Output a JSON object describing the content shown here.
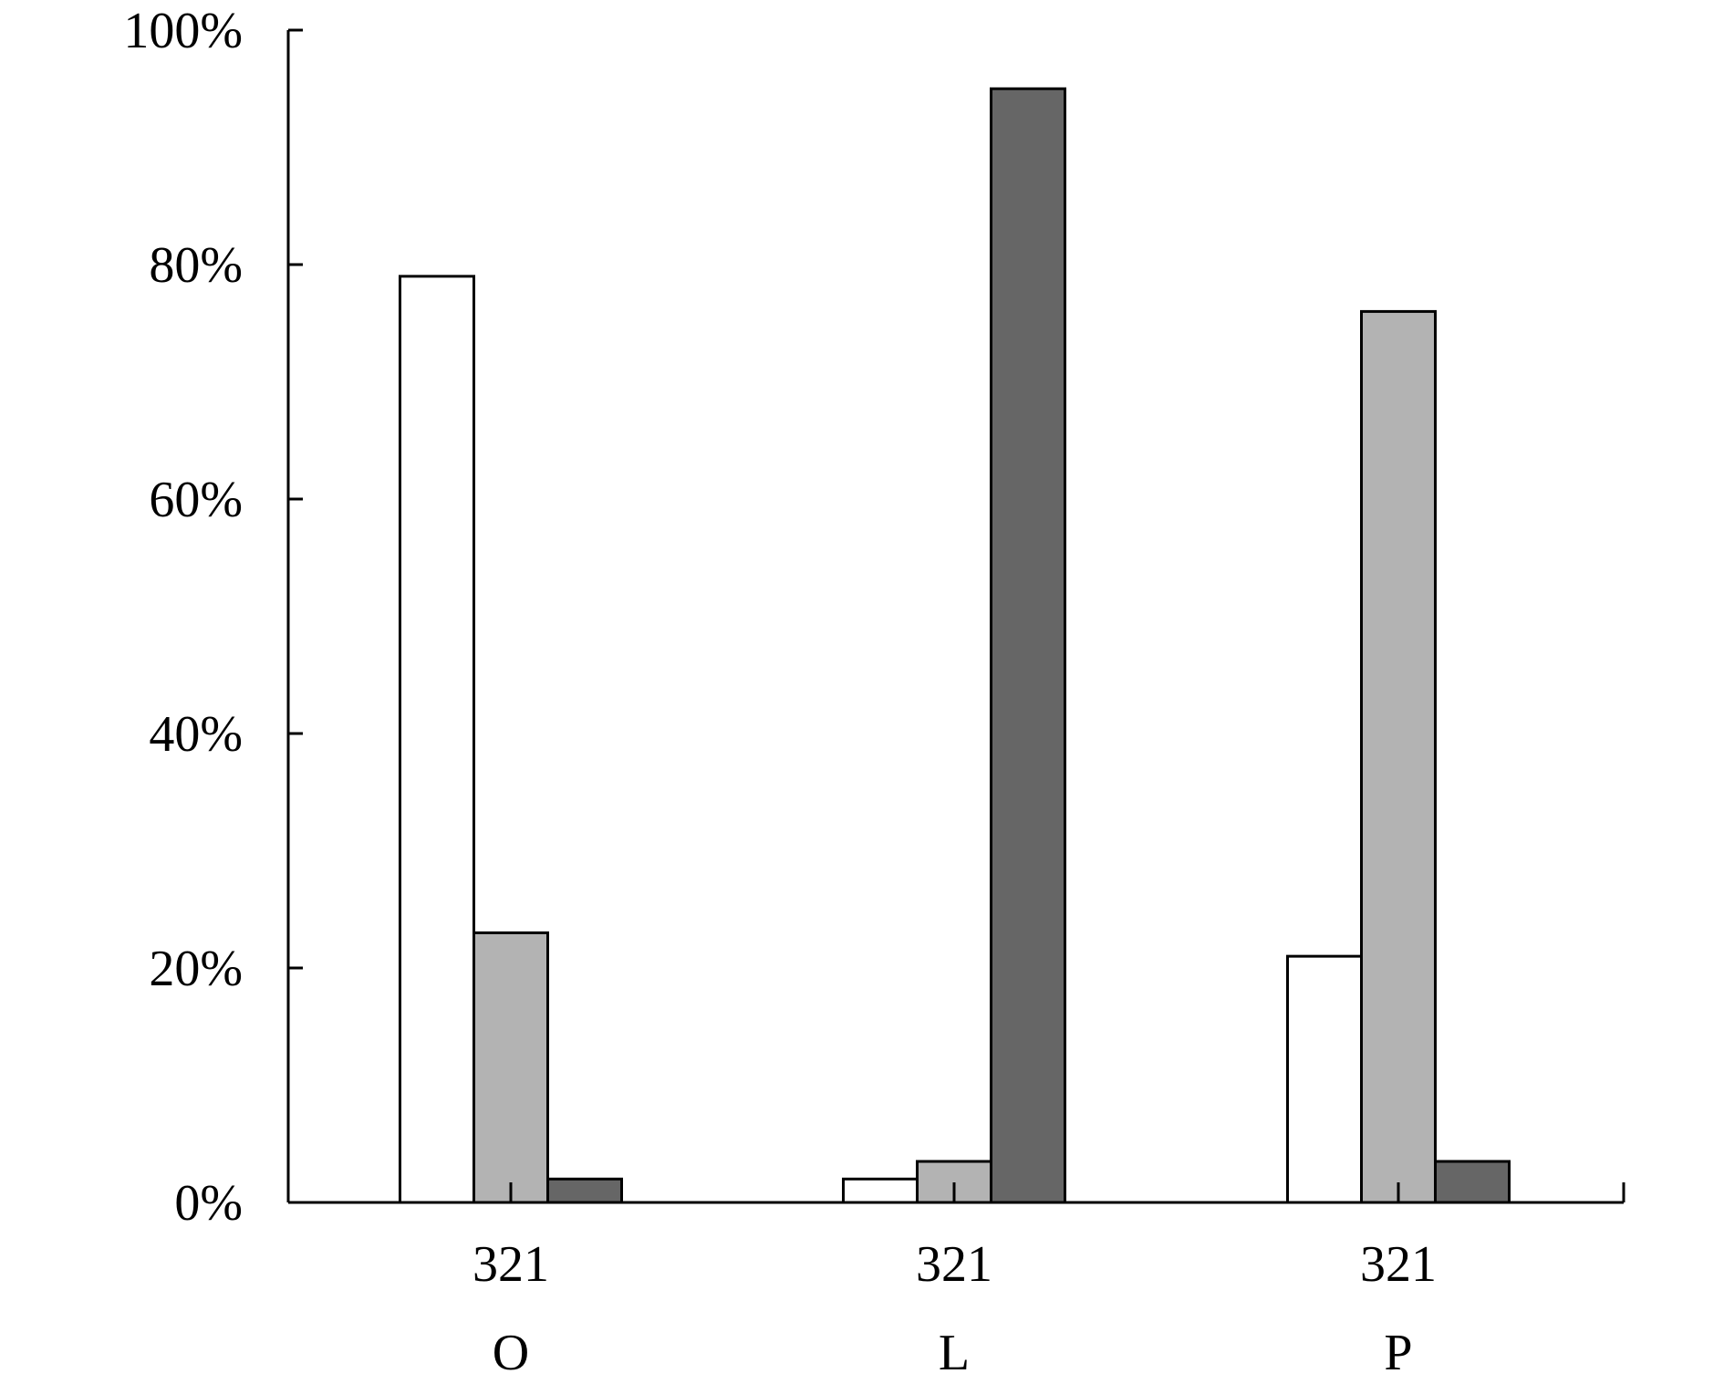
{
  "chart_data": {
    "type": "bar",
    "title": "",
    "xlabel": "",
    "ylabel": "",
    "ylim": [
      0,
      100
    ],
    "y_ticks": [
      "0%",
      "20%",
      "40%",
      "60%",
      "80%",
      "100%"
    ],
    "groups": [
      {
        "sub_label": "321",
        "label": "O"
      },
      {
        "sub_label": "321",
        "label": "L"
      },
      {
        "sub_label": "321",
        "label": "P"
      }
    ],
    "categories": [
      "O",
      "L",
      "P"
    ],
    "series": [
      {
        "color": "#ffffff",
        "values": [
          79,
          2,
          21
        ]
      },
      {
        "color": "#b3b3b3",
        "values": [
          23,
          3.5,
          76
        ]
      },
      {
        "color": "#666666",
        "values": [
          2,
          95,
          3.5
        ]
      }
    ],
    "grid": false,
    "legend": "none"
  }
}
